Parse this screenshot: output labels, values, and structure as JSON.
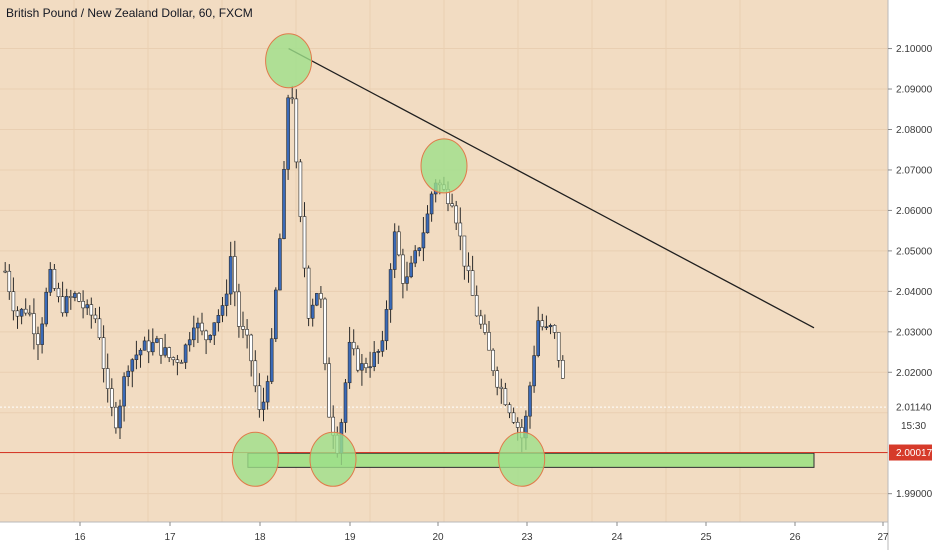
{
  "title": "British Pound / New Zealand Dollar, 60, FXCM",
  "colors": {
    "background": "#f2dcc2",
    "candle_up": "#3a6ab8",
    "candle_down": "#ffffff",
    "wick": "#2b2b2b",
    "trendline": "#1f1f1f",
    "support_zone": "#a7e08a",
    "circle_fill": "#9ee08a",
    "circle_stroke": "#e07a4a",
    "price_line": "#d63a2a",
    "dotted_line": "#ffffff"
  },
  "price_scale": {
    "ticks": [
      "2.10000",
      "2.09000",
      "2.08000",
      "2.07000",
      "2.06000",
      "2.05000",
      "2.04000",
      "2.03000",
      "2.02000",
      "1.99000"
    ],
    "last_price_label": "2.01140",
    "countdown_label": "15:30",
    "current_price_label": "2.00017"
  },
  "time_scale": {
    "ticks": [
      "16",
      "17",
      "18",
      "19",
      "20",
      "23",
      "24",
      "25",
      "26",
      "27"
    ]
  },
  "chart_data": {
    "type": "candlestick",
    "title": "British Pound / New Zealand Dollar, 60, FXCM",
    "y_range": [
      1.983,
      2.112
    ],
    "x_range": [
      15.0,
      27.0
    ],
    "anchors": [
      [
        15.05,
        2.045
      ],
      [
        15.2,
        2.034
      ],
      [
        15.35,
        2.036
      ],
      [
        15.5,
        2.028
      ],
      [
        15.65,
        2.044
      ],
      [
        15.8,
        2.036
      ],
      [
        16.0,
        2.039
      ],
      [
        16.15,
        2.035
      ],
      [
        16.3,
        2.033
      ],
      [
        16.45,
        2.012
      ],
      [
        16.55,
        2.008
      ],
      [
        16.7,
        2.022
      ],
      [
        16.9,
        2.026
      ],
      [
        17.1,
        2.027
      ],
      [
        17.3,
        2.023
      ],
      [
        17.45,
        2.024
      ],
      [
        17.6,
        2.033
      ],
      [
        17.75,
        2.028
      ],
      [
        17.9,
        2.034
      ],
      [
        18.0,
        2.035
      ],
      [
        18.1,
        2.049
      ],
      [
        18.2,
        2.032
      ],
      [
        18.35,
        2.026
      ],
      [
        18.5,
        2.008
      ],
      [
        18.65,
        2.026
      ],
      [
        18.8,
        2.062
      ],
      [
        18.9,
        2.098
      ],
      [
        19.0,
        2.065
      ],
      [
        19.15,
        2.035
      ],
      [
        19.3,
        2.042
      ],
      [
        19.4,
        2.012
      ],
      [
        19.55,
        2.001
      ],
      [
        19.7,
        2.026
      ],
      [
        19.85,
        2.021
      ],
      [
        20.0,
        2.023
      ],
      [
        20.15,
        2.026
      ],
      [
        20.3,
        2.055
      ],
      [
        20.45,
        2.041
      ],
      [
        20.6,
        2.049
      ],
      [
        20.75,
        2.058
      ],
      [
        20.85,
        2.068
      ],
      [
        21.0,
        2.064
      ],
      [
        21.1,
        2.063
      ],
      [
        21.25,
        2.048
      ],
      [
        21.4,
        2.036
      ],
      [
        21.55,
        2.027
      ],
      [
        21.7,
        2.018
      ],
      [
        21.85,
        2.012
      ],
      [
        21.95,
        2.008
      ],
      [
        22.05,
        2.003
      ],
      [
        22.15,
        2.018
      ],
      [
        22.25,
        2.033
      ],
      [
        22.35,
        2.03
      ],
      [
        22.45,
        2.031
      ],
      [
        22.55,
        2.022
      ],
      [
        22.63,
        2.012
      ]
    ],
    "trendline": [
      [
        18.9,
        2.1
      ],
      [
        26.0,
        2.031
      ]
    ],
    "support_zone": {
      "x": [
        18.35,
        26.0
      ],
      "y": [
        1.9965,
        2.0
      ]
    },
    "highlight_points": [
      [
        18.9,
        2.097
      ],
      [
        21.0,
        2.071
      ],
      [
        18.45,
        1.9985
      ],
      [
        19.5,
        1.9985
      ],
      [
        22.05,
        1.9985
      ]
    ],
    "last_price": 2.0114,
    "current_price": 2.00017
  }
}
